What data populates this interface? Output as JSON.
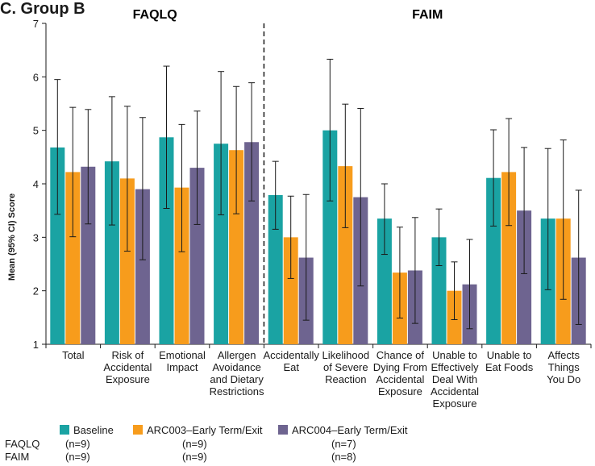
{
  "figure_label": "C. Group B",
  "legend_rows": [
    {
      "label": "FAQLQ",
      "n": [
        "(n=9)",
        "(n=9)",
        "(n=7)"
      ]
    },
    {
      "label": "FAIM",
      "n": [
        "(n=9)",
        "(n=9)",
        "(n=8)"
      ]
    }
  ],
  "chart_data": {
    "type": "bar",
    "ylabel": "Mean (95% CI) Score",
    "ylim": [
      1,
      7
    ],
    "yticks": [
      "1",
      "2",
      "3",
      "4",
      "5",
      "6",
      "7"
    ],
    "grid": false,
    "legend_position": "bottom-left",
    "panels": [
      {
        "title": "FAQLQ",
        "category_range": [
          0,
          3
        ]
      },
      {
        "title": "FAIM",
        "category_range": [
          4,
          9
        ]
      }
    ],
    "categories": [
      [
        "Total"
      ],
      [
        "Risk of",
        "Accidental",
        "Exposure"
      ],
      [
        "Emotional",
        "Impact"
      ],
      [
        "Allergen",
        "Avoidance",
        "and Dietary",
        "Restrictions"
      ],
      [
        "Accidentally",
        "Eat"
      ],
      [
        "Likelihood",
        "of Severe",
        "Reaction"
      ],
      [
        "Chance of",
        "Dying From",
        "Accidental",
        "Exposure"
      ],
      [
        "Unable to",
        "Effectively",
        "Deal With",
        "Accidental",
        "Exposure"
      ],
      [
        "Unable to",
        "Eat Foods"
      ],
      [
        "Affects",
        "Things",
        "You Do"
      ]
    ],
    "series": [
      {
        "name": "Baseline",
        "color": "#1aa3a3",
        "values": [
          4.68,
          4.42,
          4.87,
          4.75,
          3.79,
          5.0,
          3.35,
          3.0,
          4.11,
          3.35
        ],
        "ci_low": [
          3.43,
          3.23,
          3.54,
          3.42,
          3.15,
          3.68,
          2.68,
          2.47,
          3.21,
          2.02
        ],
        "ci_high": [
          5.95,
          5.63,
          6.2,
          6.1,
          4.42,
          6.33,
          4.0,
          3.53,
          5.01,
          4.66
        ]
      },
      {
        "name": "ARC003–Early Term/Exit",
        "color": "#f79c1c",
        "values": [
          4.22,
          4.1,
          3.93,
          4.63,
          3.0,
          4.33,
          2.34,
          2.0,
          4.22,
          3.35
        ],
        "ci_low": [
          3.01,
          2.74,
          2.73,
          3.44,
          2.23,
          3.18,
          1.49,
          1.46,
          3.22,
          1.84
        ],
        "ci_high": [
          5.43,
          5.45,
          5.11,
          5.82,
          3.77,
          5.49,
          3.19,
          2.54,
          5.22,
          4.82
        ]
      },
      {
        "name": "ARC004–Early Term/Exit",
        "color": "#6e6490",
        "values": [
          4.32,
          3.9,
          4.3,
          4.78,
          2.62,
          3.75,
          2.38,
          2.12,
          3.5,
          2.62
        ],
        "ci_low": [
          3.25,
          2.58,
          3.24,
          3.68,
          1.45,
          2.09,
          1.39,
          1.29,
          2.32,
          1.37
        ],
        "ci_high": [
          5.39,
          5.24,
          5.36,
          5.89,
          3.8,
          5.41,
          3.37,
          2.96,
          4.68,
          3.88
        ]
      }
    ]
  }
}
